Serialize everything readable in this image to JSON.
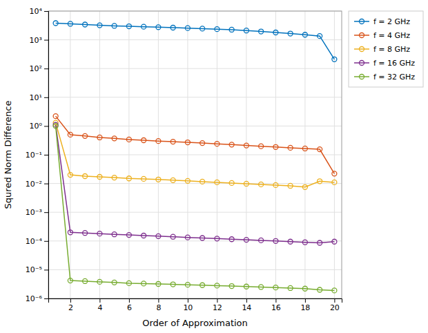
{
  "chart_data": {
    "type": "line",
    "xlabel": "Order of Approximation",
    "ylabel": "Squred Norm Difference",
    "log": "y",
    "grid": true,
    "legend": "upper right",
    "marker": "circle",
    "xlim": [
      0.5,
      20.5
    ],
    "xticks": [
      2,
      4,
      6,
      8,
      10,
      12,
      14,
      16,
      18,
      20
    ],
    "ylim": [
      1e-06,
      10000
    ],
    "yticks": [
      {
        "value": 1e-06,
        "label": "10⁻⁶"
      },
      {
        "value": 1e-05,
        "label": "10⁻⁵"
      },
      {
        "value": 0.0001,
        "label": "10⁻⁴"
      },
      {
        "value": 0.001,
        "label": "10⁻³"
      },
      {
        "value": 0.01,
        "label": "10⁻²"
      },
      {
        "value": 0.1,
        "label": "10⁻¹"
      },
      {
        "value": 1,
        "label": "10⁰"
      },
      {
        "value": 10,
        "label": "10¹"
      },
      {
        "value": 100,
        "label": "10²"
      },
      {
        "value": 1000,
        "label": "10³"
      },
      {
        "value": 10000,
        "label": "10⁴"
      }
    ],
    "x": [
      1,
      2,
      3,
      4,
      5,
      6,
      7,
      8,
      9,
      10,
      11,
      12,
      13,
      14,
      15,
      16,
      17,
      18,
      19,
      20
    ],
    "series": [
      {
        "name": "f = 2 GHz",
        "color": "#0072BD",
        "values": [
          3800,
          3600,
          3400,
          3200,
          3050,
          2950,
          2850,
          2750,
          2650,
          2550,
          2450,
          2350,
          2250,
          2100,
          1950,
          1800,
          1650,
          1500,
          1350,
          210
        ]
      },
      {
        "name": "f = 4 GHz",
        "color": "#D95319",
        "values": [
          2.2,
          0.5,
          0.45,
          0.4,
          0.37,
          0.34,
          0.32,
          0.3,
          0.285,
          0.27,
          0.255,
          0.24,
          0.225,
          0.21,
          0.198,
          0.186,
          0.175,
          0.165,
          0.155,
          0.022
        ]
      },
      {
        "name": "f = 8 GHz",
        "color": "#EDB120",
        "values": [
          1.3,
          0.02,
          0.018,
          0.017,
          0.016,
          0.015,
          0.0145,
          0.0138,
          0.013,
          0.0123,
          0.0116,
          0.011,
          0.0104,
          0.0098,
          0.0093,
          0.0088,
          0.0083,
          0.0075,
          0.012,
          0.011
        ]
      },
      {
        "name": "f = 16 GHz",
        "color": "#7E2F8E",
        "values": [
          1.1,
          0.0002,
          0.00019,
          0.00018,
          0.00017,
          0.000162,
          0.000154,
          0.000147,
          0.00014,
          0.000133,
          0.000127,
          0.000121,
          0.000115,
          0.00011,
          0.000105,
          0.0001,
          9.5e-05,
          9e-05,
          8.6e-05,
          9.5e-05
        ]
      },
      {
        "name": "f = 32 GHz",
        "color": "#77AC30",
        "values": [
          1.0,
          4.2e-06,
          4e-06,
          3.8e-06,
          3.6e-06,
          3.4e-06,
          3.3e-06,
          3.2e-06,
          3.1e-06,
          3e-06,
          2.9e-06,
          2.8e-06,
          2.7e-06,
          2.6e-06,
          2.5e-06,
          2.4e-06,
          2.3e-06,
          2.2e-06,
          2e-06,
          1.9e-06
        ]
      }
    ]
  }
}
